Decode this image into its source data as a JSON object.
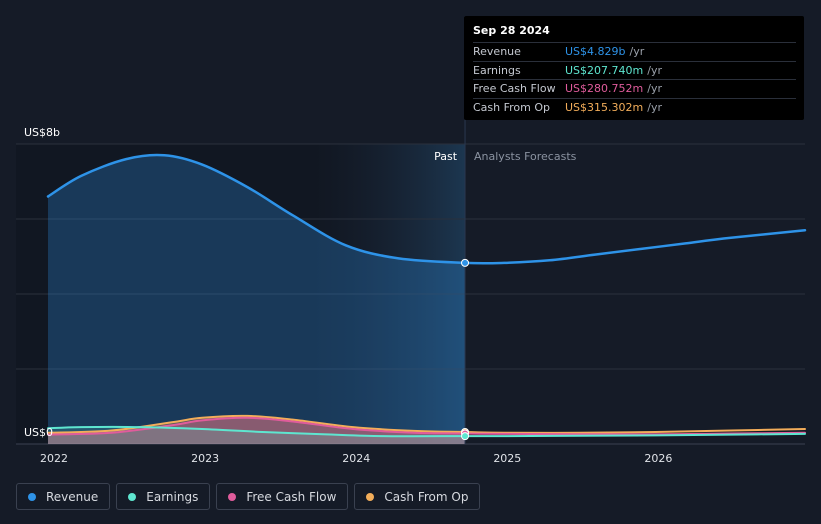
{
  "tooltip": {
    "date": "Sep 28 2024",
    "rows": [
      {
        "label": "Revenue",
        "value": "US$4.829b",
        "unit": "/yr",
        "color": "#2e93e8"
      },
      {
        "label": "Earnings",
        "value": "US$207.740m",
        "unit": "/yr",
        "color": "#5ee6d0"
      },
      {
        "label": "Free Cash Flow",
        "value": "US$280.752m",
        "unit": "/yr",
        "color": "#e05c9c"
      },
      {
        "label": "Cash From Op",
        "value": "US$315.302m",
        "unit": "/yr",
        "color": "#f2ad5a"
      }
    ]
  },
  "chart_data": {
    "type": "area",
    "ylabel_top": "US$8b",
    "ylabel_bottom": "US$0",
    "ylim": [
      0,
      8
    ],
    "xlim": [
      2021.98,
      2026.99
    ],
    "x_ticks": [
      2022,
      2023,
      2024,
      2025,
      2026
    ],
    "x_tick_labels": [
      "2022",
      "2023",
      "2024",
      "2025",
      "2026"
    ],
    "divider_x": 2024.74,
    "past_label": "Past",
    "forecast_label": "Analysts Forecasts",
    "grid": true,
    "series": [
      {
        "name": "Revenue",
        "color": "#2e93e8",
        "x": [
          2021.98,
          2022.2,
          2022.5,
          2022.75,
          2023.0,
          2023.3,
          2023.6,
          2023.95,
          2024.3,
          2024.74,
          2025.0,
          2025.3,
          2025.6,
          2025.9,
          2026.2,
          2026.5,
          2026.99
        ],
        "y": [
          6.6,
          7.15,
          7.6,
          7.7,
          7.45,
          6.85,
          6.1,
          5.3,
          4.95,
          4.83,
          4.83,
          4.9,
          5.05,
          5.2,
          5.35,
          5.5,
          5.7
        ]
      },
      {
        "name": "Earnings",
        "color": "#5ee6d0",
        "x": [
          2021.98,
          2022.2,
          2022.6,
          2023.0,
          2023.4,
          2023.8,
          2024.2,
          2024.74,
          2025.0,
          2025.5,
          2026.0,
          2026.5,
          2026.99
        ],
        "y": [
          0.42,
          0.45,
          0.45,
          0.4,
          0.32,
          0.26,
          0.21,
          0.21,
          0.21,
          0.22,
          0.23,
          0.25,
          0.27
        ]
      },
      {
        "name": "Free Cash Flow",
        "color": "#e05c9c",
        "x": [
          2021.98,
          2022.4,
          2022.8,
          2023.0,
          2023.3,
          2023.6,
          2024.0,
          2024.4,
          2024.74,
          2025.0,
          2025.5,
          2026.0,
          2026.5,
          2026.99
        ],
        "y": [
          0.25,
          0.3,
          0.5,
          0.63,
          0.7,
          0.6,
          0.4,
          0.3,
          0.28,
          0.27,
          0.26,
          0.26,
          0.28,
          0.3
        ]
      },
      {
        "name": "Cash From Op",
        "color": "#f2ad5a",
        "x": [
          2021.98,
          2022.4,
          2022.8,
          2023.0,
          2023.3,
          2023.6,
          2024.0,
          2024.4,
          2024.74,
          2025.0,
          2025.5,
          2026.0,
          2026.5,
          2026.99
        ],
        "y": [
          0.3,
          0.36,
          0.58,
          0.7,
          0.75,
          0.65,
          0.45,
          0.35,
          0.32,
          0.3,
          0.3,
          0.32,
          0.36,
          0.4
        ]
      }
    ]
  },
  "legend": [
    {
      "label": "Revenue",
      "color": "#2e93e8"
    },
    {
      "label": "Earnings",
      "color": "#5ee6d0"
    },
    {
      "label": "Free Cash Flow",
      "color": "#e05c9c"
    },
    {
      "label": "Cash From Op",
      "color": "#f2ad5a"
    }
  ]
}
